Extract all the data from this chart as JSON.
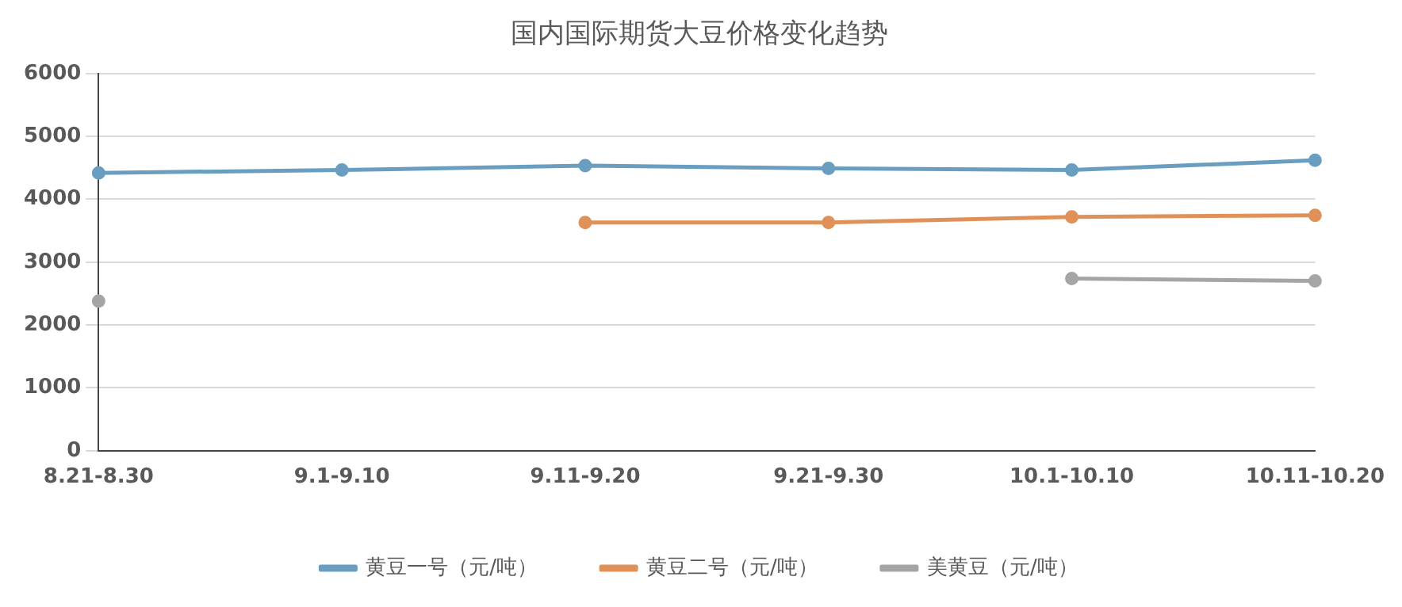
{
  "chart_data": {
    "type": "line",
    "title": "国内国际期货大豆价格变化趋势",
    "categories": [
      "8.21-8.30",
      "9.1-9.10",
      "9.11-9.20",
      "9.21-9.30",
      "10.1-10.10",
      "10.11-10.20"
    ],
    "series": [
      {
        "name": "黄豆一号（元/吨）",
        "color": "#6a9ec0",
        "values": [
          4420,
          4465,
          4535,
          4490,
          4465,
          4620
        ]
      },
      {
        "name": "黄豆二号（元/吨）",
        "color": "#e0915a",
        "values": [
          null,
          null,
          3630,
          3630,
          3720,
          3745
        ]
      },
      {
        "name": "美黄豆（元/吨）",
        "color": "#a5a5a5",
        "values": [
          2380,
          null,
          null,
          null,
          2740,
          2700
        ]
      }
    ],
    "ylim": [
      0,
      6000
    ],
    "yticks": [
      0,
      1000,
      2000,
      3000,
      4000,
      5000,
      6000
    ],
    "grid": "y",
    "legend": "bottom",
    "marker": "circle",
    "line_style": "solid"
  }
}
